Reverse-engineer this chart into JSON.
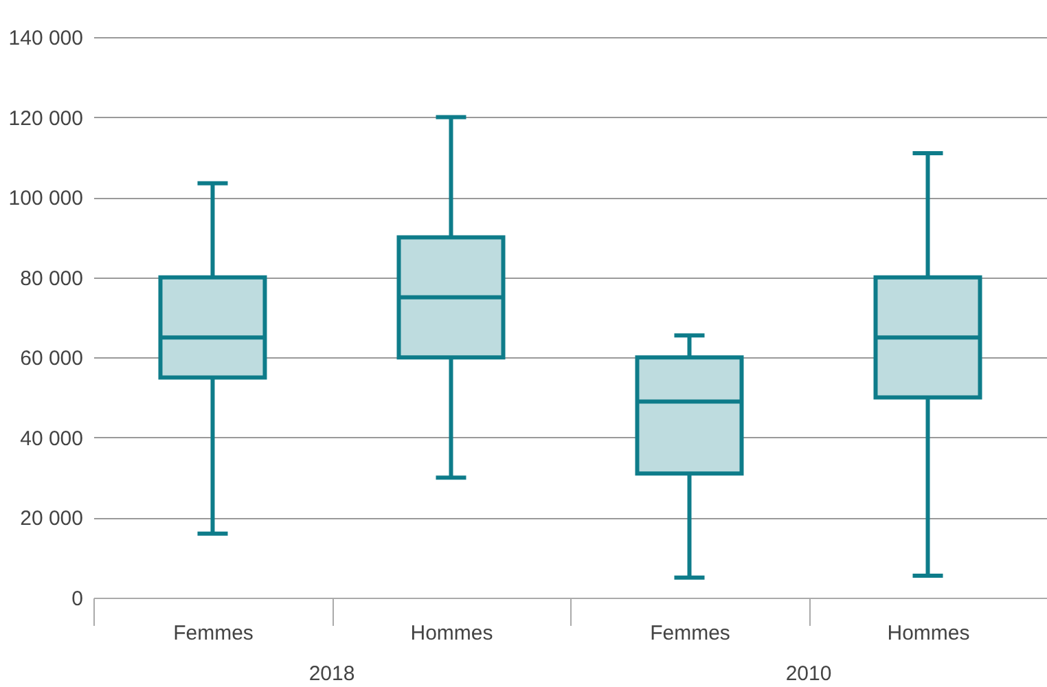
{
  "chart_data": {
    "type": "box",
    "categories": [
      "Femmes",
      "Hommes",
      "Femmes",
      "Hommes"
    ],
    "annotations": [
      "2018",
      "2010"
    ],
    "color": "#0e7c8a",
    "boxes": [
      {
        "low": 16000,
        "q1": 55000,
        "median": 65000,
        "q3": 80000,
        "high": 103500
      },
      {
        "low": 30000,
        "q1": 60000,
        "median": 75000,
        "q3": 90000,
        "high": 120000
      },
      {
        "low": 5000,
        "q1": 31000,
        "median": 49000,
        "q3": 60000,
        "high": 65500
      },
      {
        "low": 5500,
        "q1": 50000,
        "median": 65000,
        "q3": 80000,
        "high": 111000
      }
    ],
    "ylim": [
      0,
      140000
    ],
    "yticks": [
      {
        "value": 0,
        "label": "0"
      },
      {
        "value": 20000,
        "label": "20 000"
      },
      {
        "value": 40000,
        "label": "40 000"
      },
      {
        "value": 60000,
        "label": "60 000"
      },
      {
        "value": 80000,
        "label": "80 000"
      },
      {
        "value": 100000,
        "label": "100 000"
      },
      {
        "value": 120000,
        "label": "120 000"
      },
      {
        "value": 140000,
        "label": "140 000"
      }
    ],
    "grid": "y"
  }
}
